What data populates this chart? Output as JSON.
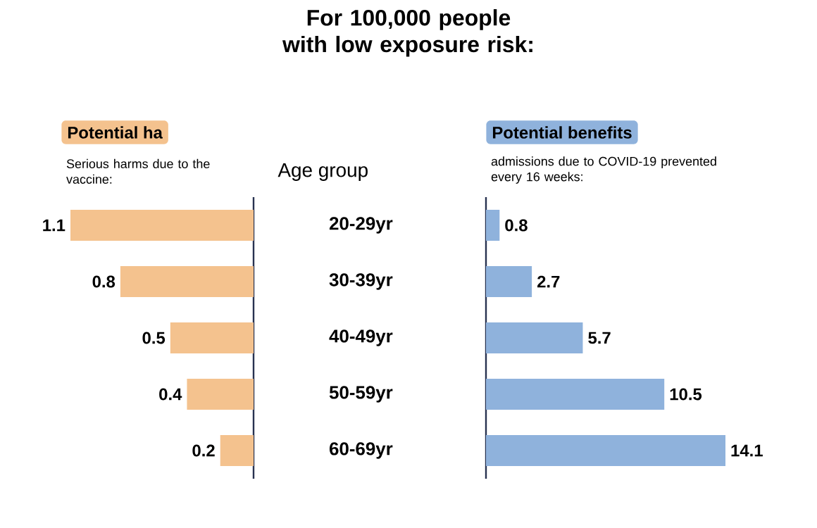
{
  "chart_data": [
    {
      "type": "bar",
      "orientation": "horizontal",
      "title": "Potential ha",
      "xlabel": "Serious harms due to the vaccine:",
      "ylabel": "Age group",
      "annotations": [
        "For 100,000 people with low exposure risk:"
      ],
      "categories": [
        "20-29yr",
        "30-39yr",
        "40-49yr",
        "50-59yr",
        "60-69yr"
      ],
      "values": [
        1.1,
        0.8,
        0.5,
        0.4,
        0.2
      ],
      "color": "#f4c28e",
      "data_labels": true,
      "tick_labels": "y"
    },
    {
      "type": "bar",
      "orientation": "horizontal",
      "title": "Potential benefits",
      "xlabel": "admissions due to COVID-19 prevented every 16 weeks:",
      "categories": [
        null,
        null,
        null,
        null,
        null
      ],
      "values": [
        0.8,
        2.7,
        5.7,
        10.5,
        14.1
      ],
      "color": "#8fb2dc",
      "data_labels": true,
      "tick_labels": false
    }
  ]
}
